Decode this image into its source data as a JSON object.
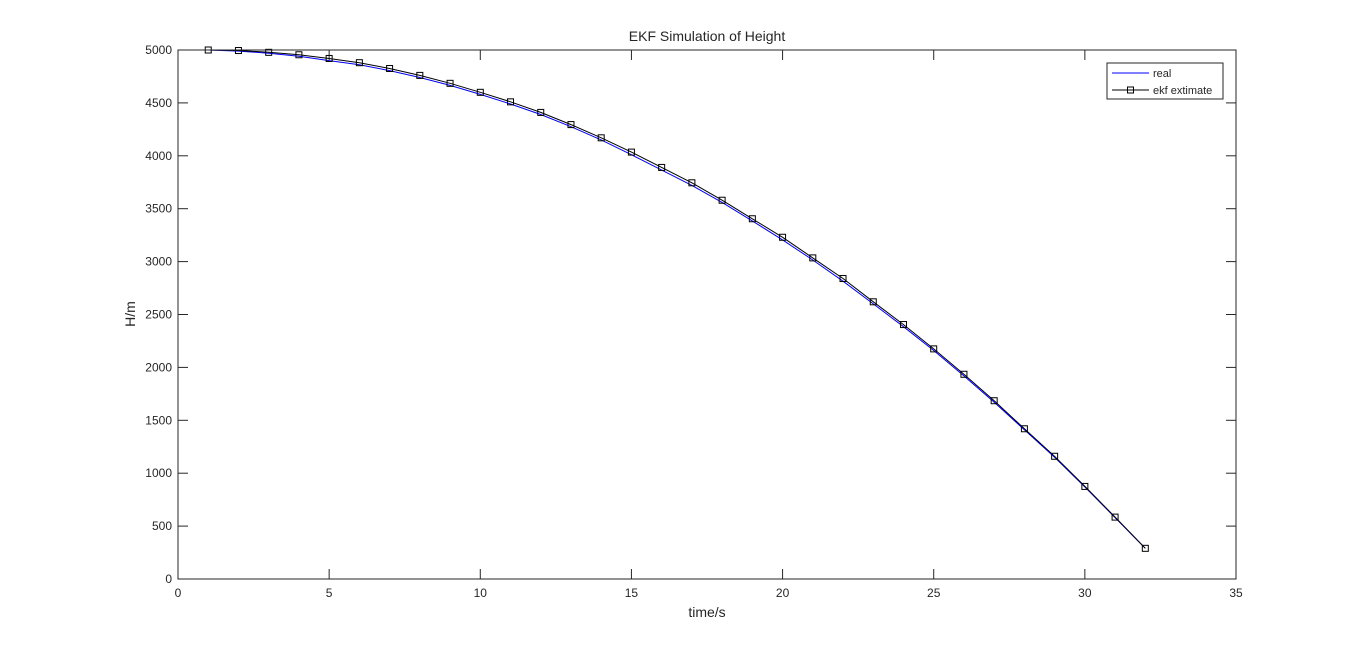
{
  "chart_data": {
    "type": "line",
    "title": "EKF Simulation of Height",
    "xlabel": "time/s",
    "ylabel": "H/m",
    "xlim": [
      0,
      35
    ],
    "ylim": [
      0,
      5000
    ],
    "xticks": [
      0,
      5,
      10,
      15,
      20,
      25,
      30,
      35
    ],
    "yticks": [
      0,
      500,
      1000,
      1500,
      2000,
      2500,
      3000,
      3500,
      4000,
      4500,
      5000
    ],
    "grid": false,
    "legend_position": "top-right",
    "series": [
      {
        "name": "real",
        "color": "#0000ff",
        "marker": "none",
        "x": [
          1,
          2,
          3,
          4,
          5,
          6,
          7,
          8,
          9,
          10,
          11,
          12,
          13,
          14,
          15,
          16,
          17,
          18,
          19,
          20,
          21,
          22,
          23,
          24,
          25,
          26,
          27,
          28,
          29,
          30,
          31,
          32
        ],
        "values": [
          5000,
          4990,
          4970,
          4940,
          4900,
          4860,
          4805,
          4740,
          4665,
          4580,
          4490,
          4390,
          4275,
          4150,
          4010,
          3865,
          3720,
          3560,
          3385,
          3205,
          3015,
          2815,
          2600,
          2385,
          2160,
          1920,
          1670,
          1410,
          1150,
          870,
          580,
          290
        ]
      },
      {
        "name": "ekf extimate",
        "color": "#000000",
        "marker": "square",
        "x": [
          1,
          2,
          3,
          4,
          5,
          6,
          7,
          8,
          9,
          10,
          11,
          12,
          13,
          14,
          15,
          16,
          17,
          18,
          19,
          20,
          21,
          22,
          23,
          24,
          25,
          26,
          27,
          28,
          29,
          30,
          31,
          32
        ],
        "values": [
          5000,
          4995,
          4978,
          4955,
          4920,
          4880,
          4825,
          4760,
          4685,
          4600,
          4510,
          4410,
          4295,
          4170,
          4035,
          3890,
          3745,
          3580,
          3405,
          3230,
          3035,
          2840,
          2620,
          2405,
          2175,
          1935,
          1685,
          1420,
          1160,
          875,
          585,
          290
        ]
      }
    ]
  }
}
